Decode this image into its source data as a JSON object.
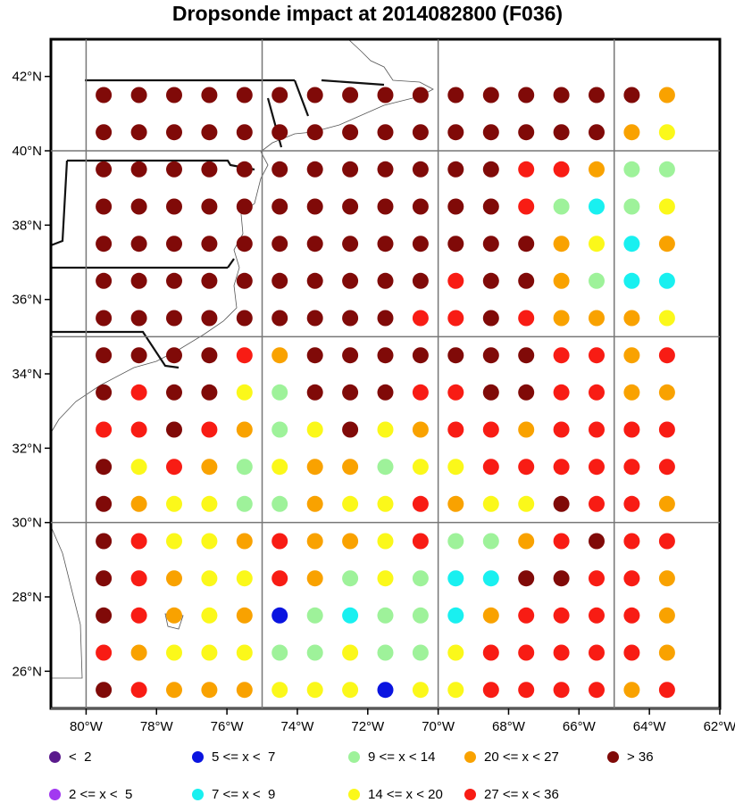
{
  "title": "Dropsonde impact at 2014082800 (F036)",
  "colors": {
    "lt2": "#5a1a8c",
    "b2_5": "#a239f0",
    "b5_7": "#0a14e0",
    "b7_9": "#19f0f0",
    "b9_14": "#9ef29a",
    "b14_20": "#fbf81a",
    "b20_27": "#f9a200",
    "b27_36": "#f81c14",
    "gt36": "#800a08"
  },
  "map": {
    "lon_range": [
      -81,
      -62
    ],
    "lat_range": [
      25,
      43
    ],
    "lon_ticks": [
      "80°W",
      "78°W",
      "76°W",
      "74°W",
      "72°W",
      "70°W",
      "68°W",
      "66°W",
      "64°W",
      "62°W"
    ],
    "lat_ticks": [
      "26°N",
      "28°N",
      "30°N",
      "32°N",
      "34°N",
      "36°N",
      "38°N",
      "40°N",
      "42°N"
    ]
  },
  "grid": {
    "lons": [
      -79.5,
      -78.5,
      -77.5,
      -76.5,
      -75.5,
      -74.5,
      -73.5,
      -72.5,
      -71.5,
      -70.5,
      -69.5,
      -68.5,
      -67.5,
      -66.5,
      -65.5,
      -64.5,
      -63.5
    ],
    "lats": [
      41.5,
      40.5,
      39.5,
      38.5,
      37.5,
      36.5,
      35.5,
      34.5,
      33.5,
      32.5,
      31.5,
      30.5,
      29.5,
      28.5,
      27.5,
      26.5,
      25.5
    ],
    "rows": [
      [
        "gt36",
        "gt36",
        "gt36",
        "gt36",
        "gt36",
        "gt36",
        "gt36",
        "gt36",
        "gt36",
        "gt36",
        "gt36",
        "gt36",
        "gt36",
        "gt36",
        "gt36",
        "gt36",
        "b20_27"
      ],
      [
        "gt36",
        "gt36",
        "gt36",
        "gt36",
        "gt36",
        "gt36",
        "gt36",
        "gt36",
        "gt36",
        "gt36",
        "gt36",
        "gt36",
        "gt36",
        "gt36",
        "gt36",
        "b20_27",
        "b14_20"
      ],
      [
        "gt36",
        "gt36",
        "gt36",
        "gt36",
        "gt36",
        "gt36",
        "gt36",
        "gt36",
        "gt36",
        "gt36",
        "gt36",
        "gt36",
        "b27_36",
        "b27_36",
        "b20_27",
        "b9_14",
        "b9_14"
      ],
      [
        "gt36",
        "gt36",
        "gt36",
        "gt36",
        "gt36",
        "gt36",
        "gt36",
        "gt36",
        "gt36",
        "gt36",
        "gt36",
        "gt36",
        "b27_36",
        "b9_14",
        "b7_9",
        "b9_14",
        "b14_20"
      ],
      [
        "gt36",
        "gt36",
        "gt36",
        "gt36",
        "gt36",
        "gt36",
        "gt36",
        "gt36",
        "gt36",
        "gt36",
        "gt36",
        "gt36",
        "gt36",
        "b20_27",
        "b14_20",
        "b7_9",
        "b20_27"
      ],
      [
        "gt36",
        "gt36",
        "gt36",
        "gt36",
        "gt36",
        "gt36",
        "gt36",
        "gt36",
        "gt36",
        "gt36",
        "b27_36",
        "gt36",
        "gt36",
        "b20_27",
        "b9_14",
        "b7_9",
        "b7_9"
      ],
      [
        "gt36",
        "gt36",
        "gt36",
        "gt36",
        "gt36",
        "gt36",
        "gt36",
        "gt36",
        "gt36",
        "b27_36",
        "b27_36",
        "gt36",
        "b27_36",
        "b20_27",
        "b20_27",
        "b20_27",
        "b14_20"
      ],
      [
        "gt36",
        "gt36",
        "gt36",
        "gt36",
        "b27_36",
        "b20_27",
        "gt36",
        "gt36",
        "gt36",
        "gt36",
        "gt36",
        "gt36",
        "gt36",
        "b27_36",
        "b27_36",
        "b20_27",
        "b27_36"
      ],
      [
        "gt36",
        "b27_36",
        "gt36",
        "gt36",
        "b14_20",
        "b9_14",
        "gt36",
        "gt36",
        "gt36",
        "b27_36",
        "b27_36",
        "gt36",
        "gt36",
        "b27_36",
        "b27_36",
        "b20_27",
        "b20_27"
      ],
      [
        "b27_36",
        "b27_36",
        "gt36",
        "b27_36",
        "b20_27",
        "b9_14",
        "b14_20",
        "gt36",
        "b14_20",
        "b20_27",
        "b27_36",
        "b27_36",
        "b20_27",
        "b27_36",
        "b27_36",
        "b27_36",
        "b27_36"
      ],
      [
        "gt36",
        "b14_20",
        "b27_36",
        "b20_27",
        "b9_14",
        "b14_20",
        "b20_27",
        "b20_27",
        "b9_14",
        "b14_20",
        "b14_20",
        "b27_36",
        "b27_36",
        "b27_36",
        "b27_36",
        "b27_36",
        "b27_36"
      ],
      [
        "gt36",
        "b20_27",
        "b14_20",
        "b14_20",
        "b9_14",
        "b9_14",
        "b20_27",
        "b14_20",
        "b14_20",
        "b27_36",
        "b20_27",
        "b14_20",
        "b14_20",
        "gt36",
        "b27_36",
        "b27_36",
        "b20_27"
      ],
      [
        "gt36",
        "b27_36",
        "b14_20",
        "b14_20",
        "b20_27",
        "b27_36",
        "b20_27",
        "b20_27",
        "b14_20",
        "b27_36",
        "b9_14",
        "b9_14",
        "b20_27",
        "b27_36",
        "gt36",
        "b27_36",
        "b27_36"
      ],
      [
        "gt36",
        "b27_36",
        "b20_27",
        "b14_20",
        "b14_20",
        "b27_36",
        "b20_27",
        "b9_14",
        "b14_20",
        "b9_14",
        "b7_9",
        "b7_9",
        "gt36",
        "gt36",
        "b27_36",
        "b27_36",
        "b20_27"
      ],
      [
        "gt36",
        "b27_36",
        "b20_27",
        "b14_20",
        "b20_27",
        "b5_7",
        "b9_14",
        "b7_9",
        "b9_14",
        "b9_14",
        "b7_9",
        "b20_27",
        "b27_36",
        "b27_36",
        "b27_36",
        "b27_36",
        "b20_27"
      ],
      [
        "b27_36",
        "b20_27",
        "b14_20",
        "b14_20",
        "b14_20",
        "b9_14",
        "b9_14",
        "b14_20",
        "b9_14",
        "b9_14",
        "b14_20",
        "b27_36",
        "b27_36",
        "b27_36",
        "b27_36",
        "b27_36",
        "b20_27"
      ],
      [
        "gt36",
        "b27_36",
        "b20_27",
        "b20_27",
        "b20_27",
        "b14_20",
        "b14_20",
        "b14_20",
        "b5_7",
        "b14_20",
        "b14_20",
        "b27_36",
        "b27_36",
        "b27_36",
        "b27_36",
        "b20_27",
        "b27_36"
      ]
    ]
  },
  "legend": [
    {
      "key": "lt2",
      "label": "<  2"
    },
    {
      "key": "b2_5",
      "label": "2 <= x <  5"
    },
    {
      "key": "b5_7",
      "label": "5 <= x <  7"
    },
    {
      "key": "b7_9",
      "label": "7 <= x <  9"
    },
    {
      "key": "b9_14",
      "label": "9 <= x < 14"
    },
    {
      "key": "b14_20",
      "label": "14 <= x < 20"
    },
    {
      "key": "b20_27",
      "label": "20 <= x < 27"
    },
    {
      "key": "b27_36",
      "label": "27 <= x < 36"
    },
    {
      "key": "gt36",
      "label": "> 36"
    }
  ]
}
